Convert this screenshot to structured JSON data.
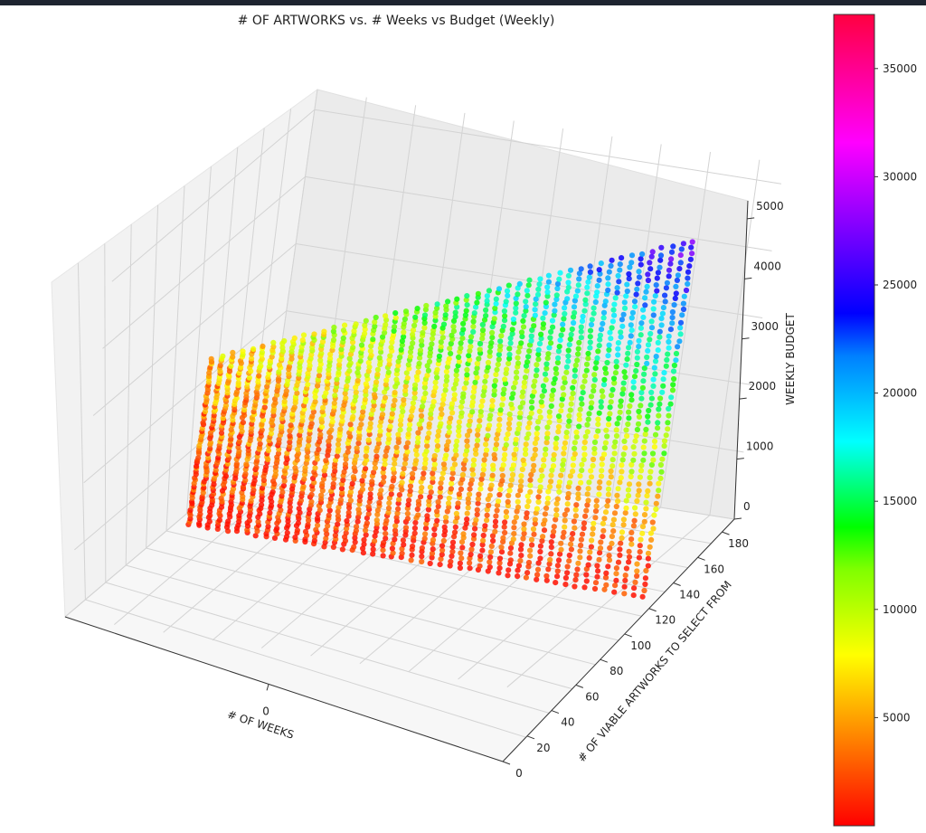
{
  "chart_data": {
    "type": "scatter",
    "projection": "3d",
    "title": "# OF ARTWORKS vs. # Weeks vs Budget (Weekly)",
    "axes": {
      "x": {
        "label": "# OF WEEKS",
        "ticks": [
          0
        ]
      },
      "y": {
        "label": "# OF VIABLE ARTWORKS TO SELECT FROM",
        "range": [
          0,
          190
        ],
        "ticks": [
          0,
          20,
          40,
          60,
          80,
          100,
          120,
          140,
          160,
          180
        ]
      },
      "z": {
        "label": "WEEKLY BUDGET",
        "range": [
          0,
          5300
        ],
        "ticks": [
          0,
          1000,
          2000,
          3000,
          4000,
          5000
        ]
      }
    },
    "colorbar": {
      "colormap": "gist_rainbow",
      "range": [
        0,
        37500
      ],
      "ticks": [
        5000,
        10000,
        15000,
        20000,
        25000,
        30000,
        35000
      ],
      "gradient_stops": [
        "#ff0000",
        "#ff4000",
        "#ff8000",
        "#ffbf00",
        "#ffff00",
        "#bfff00",
        "#80ff00",
        "#00ff00",
        "#00ff80",
        "#00ffff",
        "#00bfff",
        "#0080ff",
        "#0000ff",
        "#4000ff",
        "#8000ff",
        "#c000ff",
        "#ff00ff",
        "#ff00bf",
        "#ff0080",
        "#ff0040"
      ]
    },
    "grid": true,
    "series": [
      {
        "x_weeks": 0,
        "artworks_range": [
          5,
          190
        ],
        "budget_range": [
          0,
          5300
        ],
        "color_value_range": [
          0,
          28000
        ]
      }
    ]
  }
}
